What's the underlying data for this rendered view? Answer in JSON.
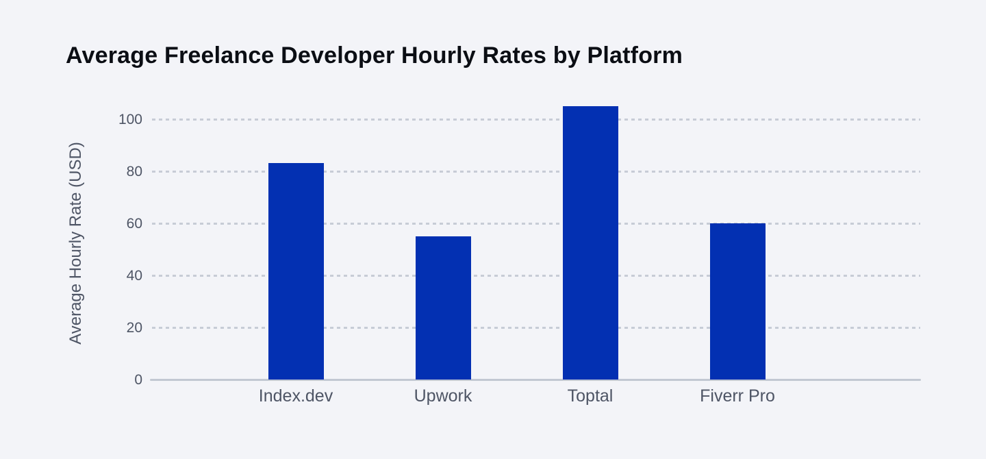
{
  "chart_data": {
    "type": "bar",
    "title": "Average Freelance Developer Hourly Rates by Platform",
    "xlabel": "",
    "ylabel": "Average Hourly Rate (USD)",
    "categories": [
      "Index.dev",
      "Upwork",
      "Toptal",
      "Fiverr Pro"
    ],
    "values": [
      83,
      55,
      105,
      60
    ],
    "yticks": [
      0,
      20,
      40,
      60,
      80,
      100
    ],
    "ylim": [
      0,
      109
    ],
    "grid": "horizontal-dashed",
    "legend_position": "none",
    "colors": {
      "bar": "#0330B2",
      "background": "#F3F4F8",
      "gridline": "#C7CCD6",
      "axis_line": "#C2C8D2",
      "tick_text": "#4E5565",
      "title_text": "#0B0E14"
    }
  }
}
